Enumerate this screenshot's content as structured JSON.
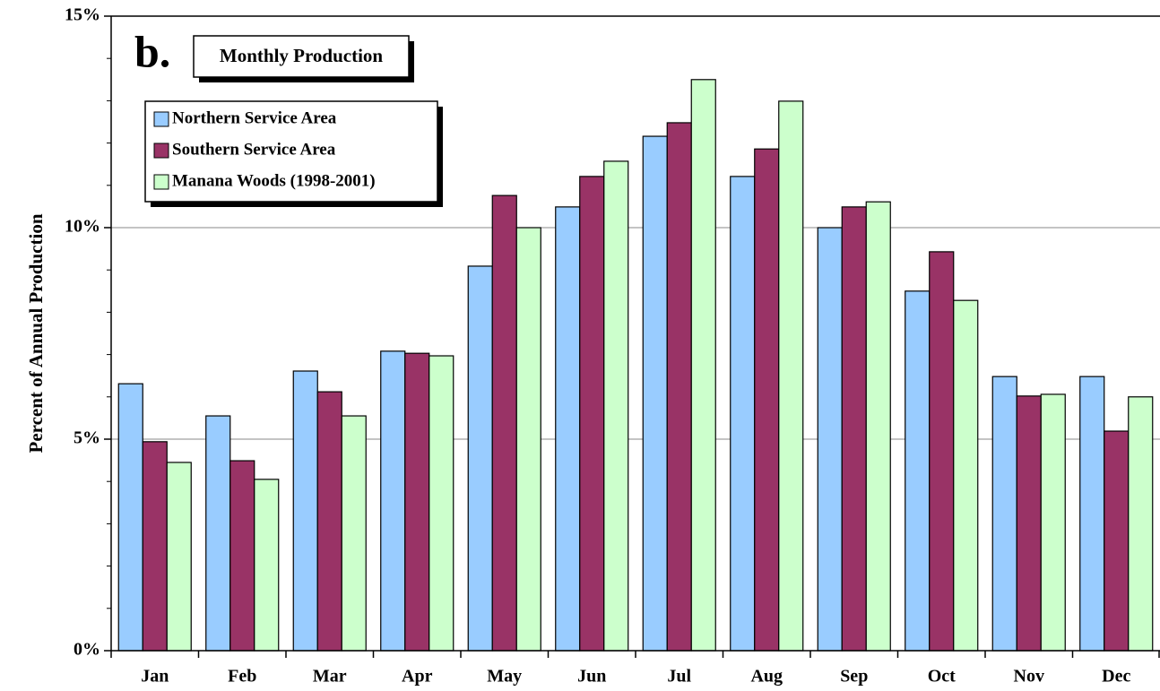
{
  "chart_data": {
    "type": "bar",
    "panel_label": "b.",
    "title": "Monthly Production",
    "y_label": "Percent of Annual Production",
    "categories": [
      "Jan",
      "Feb",
      "Mar",
      "Apr",
      "May",
      "Jun",
      "Jul",
      "Aug",
      "Sep",
      "Oct",
      "Nov",
      "Dec"
    ],
    "series": [
      {
        "name": "Northern Service Area",
        "color": "#99ccff",
        "values": [
          6.31,
          5.55,
          6.61,
          7.08,
          9.09,
          10.49,
          12.16,
          11.21,
          10.0,
          8.5,
          6.48,
          6.48
        ]
      },
      {
        "name": "Southern Service Area",
        "color": "#993366",
        "values": [
          4.94,
          4.49,
          6.12,
          7.03,
          10.76,
          11.21,
          12.48,
          11.86,
          10.49,
          9.43,
          6.02,
          5.19
        ]
      },
      {
        "name": "Manana Woods (1998-2001)",
        "color": "#ccffcc",
        "values": [
          4.45,
          4.05,
          5.55,
          6.97,
          10.0,
          11.57,
          13.5,
          12.99,
          10.61,
          8.28,
          6.06,
          6.0
        ]
      }
    ],
    "ylim": [
      0,
      15
    ],
    "yticks": [
      {
        "value": 0,
        "label": "0%"
      },
      {
        "value": 5,
        "label": "5%"
      },
      {
        "value": 10,
        "label": "10%"
      },
      {
        "value": 15,
        "label": "15%"
      }
    ],
    "yminorticks": [
      1,
      2,
      3,
      4,
      6,
      7,
      8,
      9,
      11,
      12,
      13,
      14
    ],
    "grid": true,
    "legend": "upper left"
  }
}
